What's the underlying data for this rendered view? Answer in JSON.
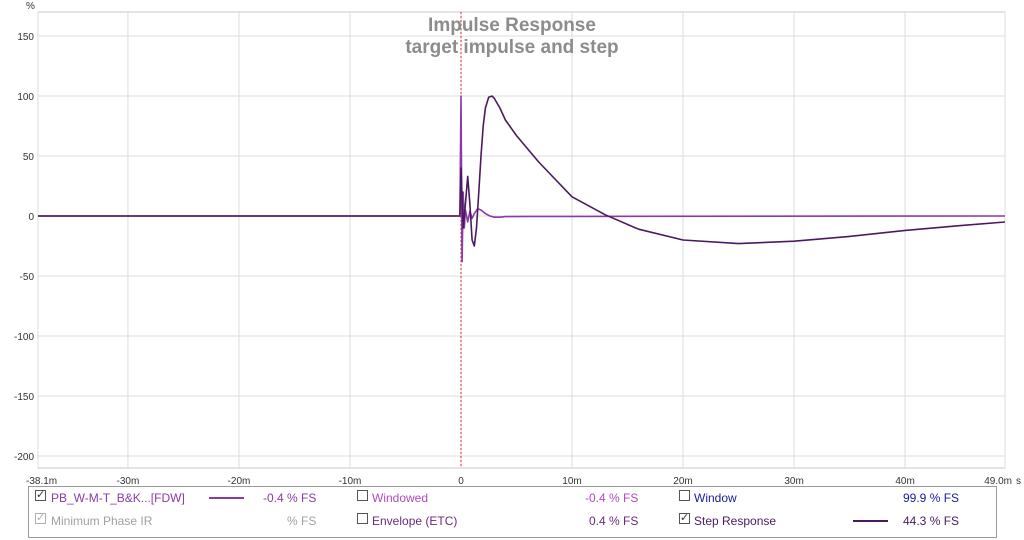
{
  "chart_data": {
    "type": "line",
    "title": "Impulse Response",
    "subtitle": "target impulse and step",
    "y_unit": "%",
    "x_unit": "s",
    "xlim": [
      -0.0381,
      0.049
    ],
    "ylim": [
      -210,
      170
    ],
    "x_ticks": [
      {
        "v": -0.0381,
        "label": "-38.1m"
      },
      {
        "v": -0.03,
        "label": "-30m"
      },
      {
        "v": -0.02,
        "label": "-20m"
      },
      {
        "v": -0.01,
        "label": "-10m"
      },
      {
        "v": 0,
        "label": "0"
      },
      {
        "v": 0.01,
        "label": "10m"
      },
      {
        "v": 0.02,
        "label": "20m"
      },
      {
        "v": 0.03,
        "label": "30m"
      },
      {
        "v": 0.04,
        "label": "40m"
      },
      {
        "v": 0.049,
        "label": "49.0m"
      }
    ],
    "y_ticks": [
      150,
      100,
      50,
      0,
      -50,
      -100,
      -150,
      -200
    ],
    "grid": true,
    "marker_at_x": 0,
    "series": [
      {
        "name": "PB_W-M-T_B&K...[FDW]",
        "color": "#8a3aa6",
        "x": [
          -0.0381,
          -0.0001,
          0,
          5e-05,
          0.0001,
          0.0002,
          0.0003,
          0.0004,
          0.0006,
          0.0008,
          0.001,
          0.0012,
          0.0015,
          0.0018,
          0.0022,
          0.0026,
          0.003,
          0.0035,
          0.004,
          0.006,
          0.01,
          0.049
        ],
        "y": [
          0,
          0,
          100,
          40,
          -38,
          20,
          -10,
          5,
          -5,
          4,
          -2,
          2,
          6,
          5,
          2,
          0,
          -1,
          -1,
          -0.5,
          -0.3,
          -0.3,
          0
        ]
      },
      {
        "name": "Step Response",
        "color": "#4b1a5e",
        "x": [
          -0.0381,
          -0.0001,
          0,
          0.0002,
          0.0004,
          0.0006,
          0.0008,
          0.001,
          0.0012,
          0.0014,
          0.0016,
          0.0018,
          0.002,
          0.0022,
          0.0025,
          0.0028,
          0.003,
          0.0035,
          0.004,
          0.005,
          0.007,
          0.01,
          0.013,
          0.016,
          0.02,
          0.025,
          0.03,
          0.035,
          0.04,
          0.045,
          0.049
        ],
        "y": [
          0,
          0,
          40,
          -10,
          10,
          33,
          10,
          -20,
          -25,
          -10,
          20,
          50,
          75,
          90,
          99,
          100,
          98,
          90,
          80,
          67,
          45,
          16,
          1,
          -11,
          -20,
          -23,
          -21,
          -17,
          -12,
          -8,
          -5
        ]
      }
    ]
  },
  "legend": {
    "row1": {
      "series_label": "PB_W-M-T_B&K...[FDW]",
      "series_value": "-0.4 % FS",
      "windowed_label": "Windowed",
      "windowed_value": "-0.4 % FS",
      "window_label": "Window",
      "window_value": "99.9 % FS"
    },
    "row2": {
      "minphase_label": "Minimum Phase IR",
      "minphase_value": "% FS",
      "envelope_label": "Envelope (ETC)",
      "envelope_value": "0.4 % FS",
      "step_label": "Step Response",
      "step_value": "44.3 % FS"
    },
    "colors": {
      "ir": "#8a3aa6",
      "windowed": "#b04ac0",
      "window": "#1a1a9a",
      "disabled": "#a0a0a0",
      "envelope": "#6a2a7a",
      "step": "#4b1a5e"
    },
    "check": "✓"
  }
}
